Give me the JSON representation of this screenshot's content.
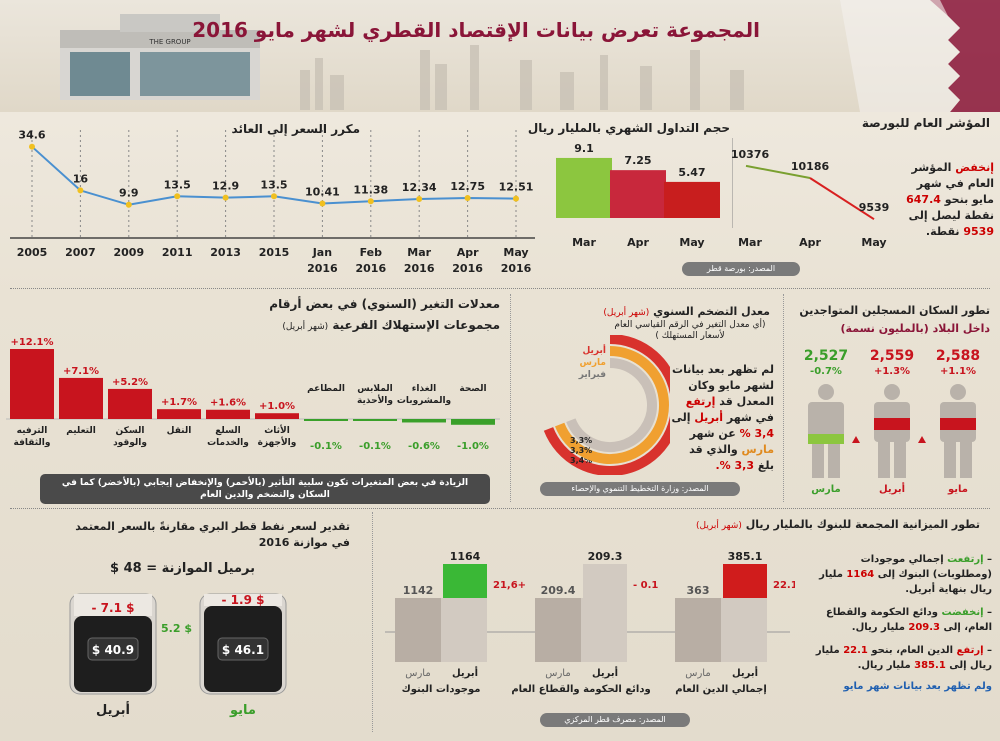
{
  "header": {
    "title": "المجموعة تعرض بيانات الإقتصاد القطري لشهر مايو 2016"
  },
  "pe": {
    "title": "مكرر السعر إلى العائد",
    "chart_data": {
      "type": "line",
      "title": "مكرر السعر إلى العائد",
      "categories": [
        "2005",
        "2007",
        "2009",
        "2011",
        "2013",
        "2015",
        "Jan 2016",
        "Feb 2016",
        "Mar 2016",
        "Apr 2016",
        "May 2016"
      ],
      "values": [
        34.6,
        16,
        9.9,
        13.5,
        12.9,
        13.5,
        10.41,
        11.38,
        12.34,
        12.75,
        12.51
      ],
      "value_labels": [
        "34.6",
        "16",
        "9.9",
        "13.5",
        "12.9",
        "13.5",
        "10.41",
        "11.38",
        "12.34",
        "12.75",
        "12.51"
      ],
      "ylim": [
        0,
        40
      ],
      "colors": {
        "line": "#4a90d0",
        "marker": "#f0c020"
      }
    }
  },
  "volume": {
    "title": "حجم التداول الشهري بالمليار ريال",
    "chart_data": {
      "type": "bar",
      "title": "حجم التداول الشهري بالمليار ريال",
      "categories": [
        "Mar",
        "Apr",
        "May"
      ],
      "values": [
        9.1,
        7.25,
        5.47
      ],
      "value_labels": [
        "9.1",
        "7.25",
        "5.47"
      ],
      "ylim": [
        0,
        10
      ],
      "colors": [
        "#8cc63f",
        "#c8283c",
        "#c81e1e"
      ]
    }
  },
  "index": {
    "title": "المؤشر العام للبورصة",
    "chart_data": {
      "type": "line",
      "title": "المؤشر العام للبورصة",
      "categories": [
        "Mar",
        "Apr",
        "May"
      ],
      "values": [
        10376,
        10186,
        9539
      ],
      "value_labels": [
        "10376",
        "10186",
        "9539"
      ],
      "ylim": [
        9400,
        10500
      ]
    },
    "text": {
      "w1": "إنخفض",
      "t1": "المؤشر العام في شهر مايو بنحو",
      "v1": "647.4",
      "t2": "نقطة ليصل إلى",
      "v2": "9539",
      "t3": "نقطة."
    },
    "source": "المصدر: بورصة قطر"
  },
  "growth": {
    "title1": "معدلات التغير (السنوي) في بعض أرقام",
    "title2": "مجموعات الإستهلاك الفرعية",
    "title2_note": "(شهر أبريل)",
    "chart_data": {
      "type": "bar",
      "categories": [
        "الترفيه والثقافة",
        "التعليم",
        "السكن والوقود",
        "النقل",
        "السلع والخدمات",
        "الأثاث والأجهزة",
        "المطاعم",
        "الملابس والأحذية",
        "الغذاء والمشروبات",
        "الصحة"
      ],
      "values": [
        12.1,
        7.1,
        5.2,
        1.7,
        1.6,
        1.0,
        -0.1,
        -0.1,
        -0.6,
        -1.0
      ],
      "value_labels": [
        "+12.1%",
        "+7.1%",
        "+5.2%",
        "+1.7%",
        "+1.6%",
        "+1.0%",
        "-0.1%",
        "-0.1%",
        "-0.6%",
        "-1.0%"
      ],
      "colors": {
        "positive": "#c8141e",
        "negative": "#3aa02a"
      }
    },
    "note": "الزيادة في بعض المتغيرات تكون سلبية التأثير (بالأحمر) والإنخفاض إيجابي (بالأخضر) كما في السكان والتضخم والدين العام"
  },
  "inflation": {
    "title": "معدل التضخم السنوي",
    "title_note": "(شهر أبريل)",
    "subtitle": "(أي معدل التغير في الرقم القياسي العام لأسعار المستهلك )",
    "chart_data": {
      "type": "area",
      "series": [
        {
          "name": "أبريل",
          "value": 3.4,
          "label": "3,4%"
        },
        {
          "name": "مارس",
          "value": 3.3,
          "label": "3,3%"
        },
        {
          "name": "فبراير",
          "value": 3.3,
          "label": "3,3%"
        }
      ],
      "colors": [
        "#d8322d",
        "#f0a030",
        "#c9c0b8"
      ]
    },
    "text": {
      "p1": "لم تظهر بعد بيانات لشهر مايو وكان المعدل قد",
      "w1": "إرتفع",
      "p2": "في شهر",
      "w2": "أبريل",
      "p3": "إلى",
      "v1": "3,4 %",
      "p4": "عن شهر",
      "w3": "مارس",
      "p5": "والذي قد بلغ",
      "v2": "3,3 %."
    },
    "source": "المصدر: وزارة التخطيط التنموي والإحصاء"
  },
  "population": {
    "title1": "تطور السكان المسجلين المتواجدين",
    "title2": "داخل البلاد (بالمليون نسمة)",
    "chart_data": {
      "type": "bar",
      "categories": [
        "مايو",
        "أبريل",
        "مارس"
      ],
      "values": [
        2.588,
        2.559,
        2.527
      ],
      "value_labels": [
        "2,588",
        "2,559",
        "2,527"
      ],
      "change": [
        "+1.1%",
        "+1.3%",
        "-0.7%"
      ]
    }
  },
  "oil": {
    "title1": "تقدير لسعر نفط قطر البري مقارنةً بالسعر المعتمد",
    "title2": "في موازنة 2016",
    "budget": "برميل الموازنة = 48 $",
    "barrels": [
      {
        "month": "أبريل",
        "price": "$ 40.9",
        "diff": "- 7.1 $"
      },
      {
        "month": "مايو",
        "price": "$ 46.1",
        "diff": "- 1.9 $",
        "gain": "5.2 $"
      }
    ]
  },
  "banks": {
    "title": "تطور الميزانية المجمعة للبنوك بالمليار ريال",
    "title_note": "(شهر أبريل)",
    "chart_data": {
      "type": "bar",
      "groups": [
        {
          "name": "موجودات البنوك",
          "march": 1142,
          "april": 1164,
          "march_label": "1142",
          "april_label": "1164",
          "diff": "21,6+"
        },
        {
          "name": "ودائع الحكومة والقطاع العام",
          "march": 209.4,
          "april": 209.3,
          "march_label": "209.4",
          "april_label": "209.3",
          "diff": "- 0.1"
        },
        {
          "name": "إجمالي الدين العام",
          "march": 363,
          "april": 385.1,
          "march_label": "363",
          "april_label": "385.1",
          "diff": "22.1+"
        }
      ],
      "series_names": [
        "مارس",
        "أبريل"
      ]
    },
    "bullets": [
      {
        "w": "إرتفعت",
        "t1": "إجمالي موجودات (ومطلوبات) البنوك إلى",
        "v": "1164",
        "t2": "مليار ريال بنهاية أبريل."
      },
      {
        "w": "إنخفضت",
        "t1": "ودائع الحكومة والقطاع العام، إلى",
        "v": "209.3",
        "t2": "مليار ريال."
      },
      {
        "w": "إرتفع",
        "t1": "الدين العام، بنحو",
        "v": "22.1",
        "t2": "مليار ريال إلى",
        "v2": "385.1",
        "t3": "مليار ريال."
      }
    ],
    "footer": "ولم تظهر بعد بيانات شهر مايو",
    "source": "المصدر: مصرف قطر المركزي"
  }
}
